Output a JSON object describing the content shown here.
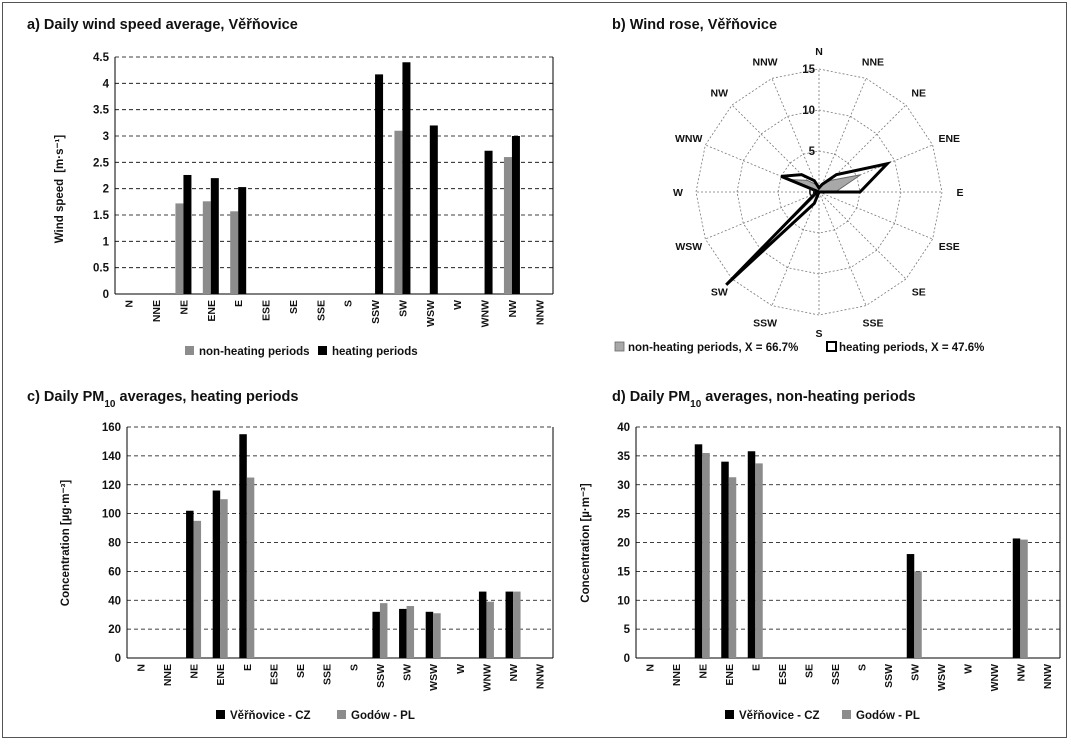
{
  "colors": {
    "black_series": "#000000",
    "gray_series": "#8c8c8c",
    "rose_fill": "#a8a8a8",
    "grid": "#000000"
  },
  "chart_data": [
    {
      "type": "bar",
      "title": "a) Daily wind speed average, Věřňovice",
      "ylabel_main": "Wind  speed",
      "ylabel_unit": "[m·s⁻¹]",
      "categories": [
        "N",
        "NNE",
        "NE",
        "ENE",
        "E",
        "ESE",
        "SE",
        "SSE",
        "S",
        "SSW",
        "SW",
        "WSW",
        "W",
        "WNW",
        "NW",
        "NNW"
      ],
      "yticks": [
        "0",
        "0.5",
        "1",
        "1.5",
        "2",
        "2.5",
        "3",
        "3.5",
        "4",
        "4.5"
      ],
      "ylim": [
        0,
        4.5
      ],
      "grid": true,
      "legend_position": "bottom",
      "series": [
        {
          "name": "non-heating periods",
          "color": "#8c8c8c",
          "values": [
            0,
            0,
            1.72,
            1.76,
            1.57,
            0,
            0,
            0,
            0,
            0,
            3.1,
            0,
            0,
            0,
            2.6,
            0
          ]
        },
        {
          "name": "heating periods",
          "color": "#000000",
          "values": [
            0,
            0,
            2.26,
            2.2,
            2.03,
            0,
            0,
            0,
            0,
            4.17,
            4.4,
            3.2,
            0,
            2.72,
            3.0,
            0
          ]
        }
      ]
    },
    {
      "type": "radar",
      "title": "b) Wind rose, Věřňovice",
      "categories": [
        "N",
        "NNE",
        "NE",
        "ENE",
        "E",
        "ESE",
        "SE",
        "SSE",
        "S",
        "SSW",
        "SW",
        "WSW",
        "W",
        "WNW",
        "NW",
        "NNW"
      ],
      "rticks": [
        "0",
        "5",
        "10",
        "15"
      ],
      "rlim": [
        0,
        15
      ],
      "legend_position": "bottom",
      "series": [
        {
          "name": "non-heating periods, X = 66.7%",
          "color": "#a8a8a8",
          "values": [
            0.5,
            1,
            2,
            5.5,
            2,
            0,
            0,
            0,
            0,
            0,
            4.5,
            0.5,
            0,
            4,
            2,
            1
          ]
        },
        {
          "name": "heating periods, X = 47.6%",
          "color": "#000000",
          "values": [
            0.5,
            1,
            3,
            9,
            5,
            0,
            0,
            0,
            0,
            1.5,
            16,
            0.5,
            0,
            5,
            3,
            1.5
          ]
        }
      ]
    },
    {
      "type": "bar",
      "title_pre": "c) Daily PM",
      "title_sub": "10",
      "title_post": " averages, heating periods",
      "ylabel": "Concentration [µg·m⁻³]",
      "categories": [
        "N",
        "NNE",
        "NE",
        "ENE",
        "E",
        "ESE",
        "SE",
        "SSE",
        "S",
        "SSW",
        "SW",
        "WSW",
        "W",
        "WNW",
        "NW",
        "NNW"
      ],
      "yticks": [
        "0",
        "20",
        "40",
        "60",
        "80",
        "100",
        "120",
        "140",
        "160"
      ],
      "ylim": [
        0,
        160
      ],
      "grid": true,
      "legend_position": "bottom",
      "series": [
        {
          "name": "Věřňovice - CZ",
          "color": "#000000",
          "values": [
            0,
            0,
            102,
            116,
            155,
            0,
            0,
            0,
            0,
            32,
            34,
            32,
            0,
            46,
            46,
            0
          ]
        },
        {
          "name": "Godów - PL",
          "color": "#8c8c8c",
          "values": [
            0,
            0,
            95,
            110,
            125,
            0,
            0,
            0,
            0,
            38,
            36,
            31,
            0,
            39,
            46,
            0
          ]
        }
      ]
    },
    {
      "type": "bar",
      "title_pre": "d) Daily PM",
      "title_sub": "10",
      "title_post": " averages, non-heating periods",
      "ylabel": "Concentration  [µ·m⁻³]",
      "categories": [
        "N",
        "NNE",
        "NE",
        "ENE",
        "E",
        "ESE",
        "SE",
        "SSE",
        "S",
        "SSW",
        "SW",
        "WSW",
        "W",
        "WNW",
        "NW",
        "NNW"
      ],
      "yticks": [
        "0",
        "5",
        "10",
        "15",
        "20",
        "25",
        "30",
        "35",
        "40"
      ],
      "ylim": [
        0,
        40
      ],
      "grid": true,
      "legend_position": "bottom",
      "series": [
        {
          "name": "Věřňovice - CZ",
          "color": "#000000",
          "values": [
            0,
            0,
            37,
            34,
            35.8,
            0,
            0,
            0,
            0,
            0,
            18,
            0,
            0,
            0,
            20.7,
            0
          ]
        },
        {
          "name": "Godów - PL",
          "color": "#8c8c8c",
          "values": [
            0,
            0,
            35.5,
            31.3,
            33.7,
            0,
            0,
            0,
            0,
            0,
            15,
            0,
            0,
            0,
            20.5,
            0
          ]
        }
      ]
    }
  ]
}
